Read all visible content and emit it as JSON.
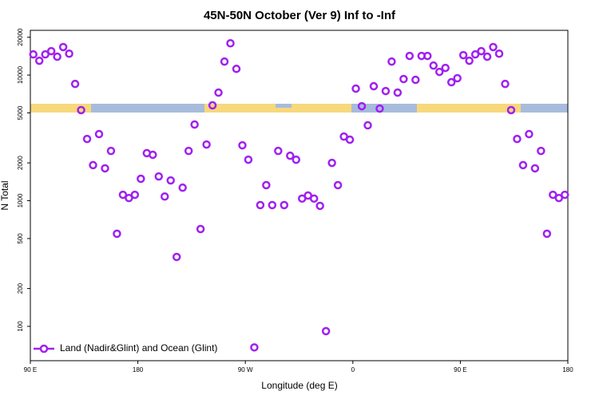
{
  "chart_data": {
    "type": "scatter",
    "title": "45N-50N October (Ver 9)   Inf to -Inf",
    "x_label": "Longitude (deg E)",
    "y_label": "N Total",
    "log_y": true,
    "xlim": [
      90,
      540
    ],
    "xticks": [
      {
        "value": 90,
        "label": "90 E"
      },
      {
        "value": 180,
        "label": "180"
      },
      {
        "value": 270,
        "label": "90 W"
      },
      {
        "value": 360,
        "label": "0"
      },
      {
        "value": 450,
        "label": "90 E"
      },
      {
        "value": 540,
        "label": "180"
      }
    ],
    "ylim": [
      53.3,
      22700
    ],
    "yticks": [
      100,
      200,
      500,
      1000,
      2000,
      5000,
      10000,
      20000
    ],
    "legend": "bottom-left",
    "series": [
      {
        "name": "Land (Nadir&Glint) and Ocean (Glint)",
        "color": "#a020f0",
        "x": [
          92.5,
          97.5,
          102.5,
          107.5,
          112.5,
          117.5,
          122.5,
          127.5,
          132.5,
          137.5,
          142.5,
          147.5,
          152.5,
          157.5,
          162.5,
          167.5,
          172.5,
          177.5,
          182.5,
          187.5,
          192.5,
          197.5,
          202.5,
          207.5,
          212.5,
          217.5,
          222.5,
          227.5,
          232.5,
          237.5,
          242.5,
          247.5,
          252.5,
          257.5,
          262.5,
          267.5,
          272.5,
          277.5,
          282.5,
          287.5,
          292.5,
          297.5,
          302.5,
          307.5,
          312.5,
          317.5,
          322.5,
          327.5,
          332.5,
          337.5,
          342.5,
          347.5,
          352.5,
          357.5,
          362.5,
          367.5,
          372.5,
          377.5,
          382.5,
          387.5,
          392.5,
          397.5,
          402.5,
          407.5,
          412.5,
          417.5,
          422.5,
          427.5,
          432.5,
          437.5,
          442.5,
          447.5,
          452.5,
          457.5,
          462.5,
          467.5,
          472.5,
          477.5,
          482.5,
          487.5,
          492.5,
          497.5,
          502.5,
          507.5,
          512.5,
          517.5,
          522.5,
          527.5,
          532.5,
          537.5
        ],
        "values": [
          14600,
          13000,
          14600,
          15500,
          14000,
          16700,
          14800,
          8500,
          5260,
          3100,
          1920,
          3390,
          1810,
          2490,
          546,
          1115,
          1050,
          1115,
          1495,
          2390,
          2320,
          1560,
          1080,
          1450,
          357,
          1270,
          2490,
          4040,
          595,
          2800,
          5740,
          7250,
          12800,
          17900,
          11200,
          2760,
          2120,
          68,
          923,
          1330,
          923,
          2490,
          923,
          2280,
          2120,
          1040,
          1100,
          1040,
          910,
          91.6,
          2000,
          1330,
          3240,
          3060,
          7800,
          5650,
          3980,
          8150,
          5410,
          7460,
          12800,
          7250,
          9300,
          14200,
          9160,
          14200,
          14200,
          11900,
          10600,
          11400,
          8770,
          9440,
          14400,
          13000,
          14600,
          15500,
          14000,
          16700,
          14800,
          8500,
          5260,
          3100,
          1920,
          3390,
          1810,
          2490,
          546,
          1115,
          1050,
          1115
        ]
      }
    ]
  }
}
